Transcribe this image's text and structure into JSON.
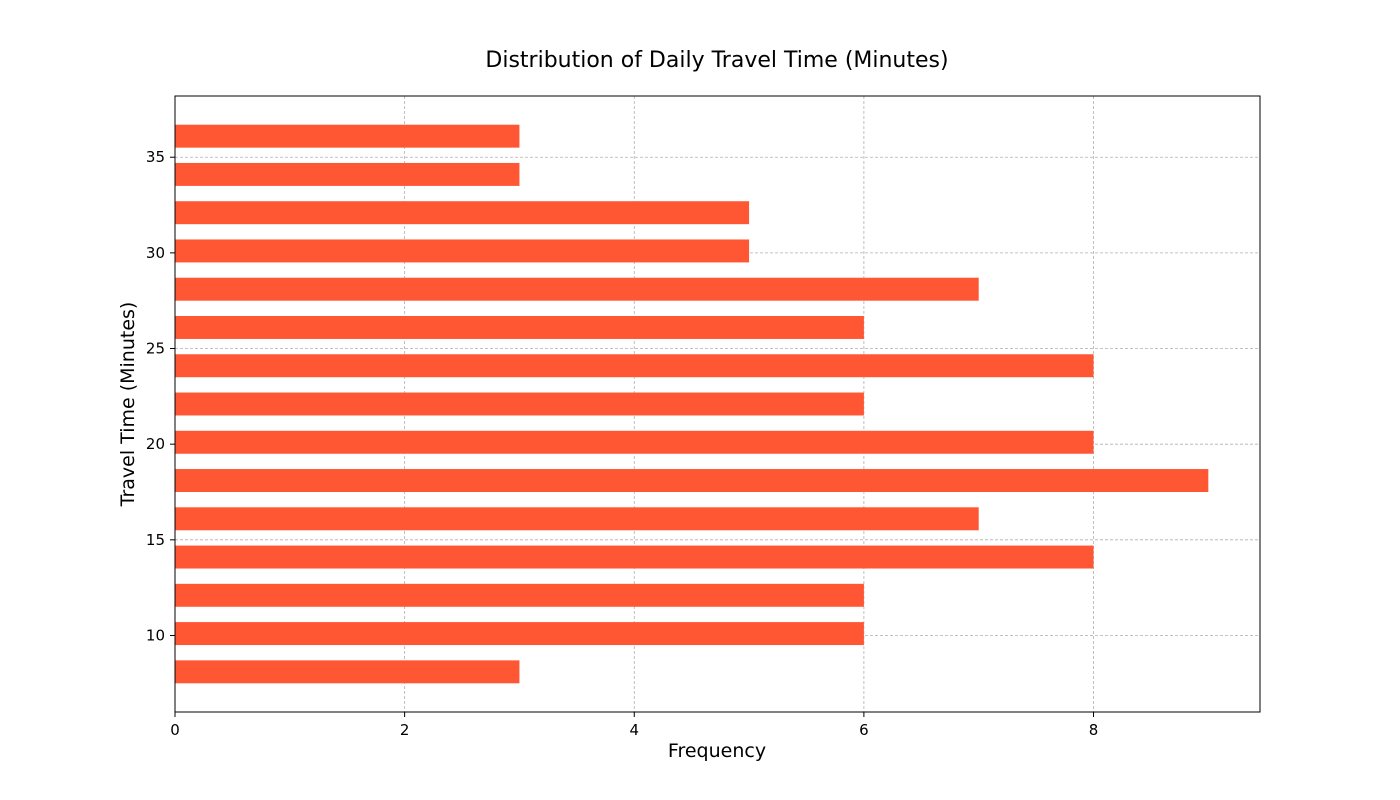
{
  "chart_data": {
    "type": "bar",
    "orientation": "horizontal",
    "title": "Distribution of Daily Travel Time (Minutes)",
    "xlabel": "Frequency",
    "ylabel": "Travel Time (Minutes)",
    "bar_color": "#ff5733",
    "grid": true,
    "xlim": [
      0,
      9.45
    ],
    "ylim": [
      6.0,
      38.2
    ],
    "xticks": [
      0,
      2,
      4,
      6,
      8
    ],
    "yticks": [
      10,
      15,
      20,
      25,
      30,
      35
    ],
    "bin_width": 2,
    "bars": [
      {
        "center": 8.1,
        "value": 3
      },
      {
        "center": 10.1,
        "value": 6
      },
      {
        "center": 12.1,
        "value": 6
      },
      {
        "center": 14.1,
        "value": 8
      },
      {
        "center": 16.1,
        "value": 7
      },
      {
        "center": 18.1,
        "value": 9
      },
      {
        "center": 20.1,
        "value": 8
      },
      {
        "center": 22.1,
        "value": 6
      },
      {
        "center": 24.1,
        "value": 8
      },
      {
        "center": 26.1,
        "value": 6
      },
      {
        "center": 28.1,
        "value": 7
      },
      {
        "center": 30.1,
        "value": 5
      },
      {
        "center": 32.1,
        "value": 5
      },
      {
        "center": 34.1,
        "value": 3
      },
      {
        "center": 36.1,
        "value": 3
      }
    ]
  }
}
